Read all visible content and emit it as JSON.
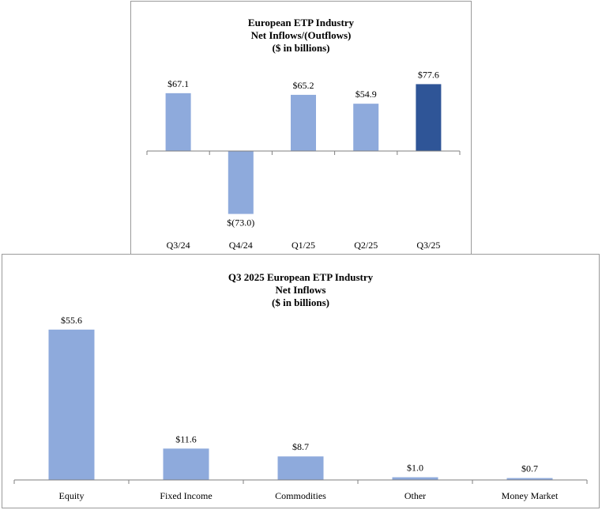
{
  "colors": {
    "bar": "#8eaadc",
    "highlight": "#2f5597",
    "axis": "#7f7f7f"
  },
  "chart_data": [
    {
      "type": "bar",
      "title": [
        "European ETP Industry",
        "Net Inflows/(Outflows)",
        "($ in billions)"
      ],
      "xlabel": "",
      "ylabel": "",
      "categories": [
        "Q3/24",
        "Q4/24",
        "Q1/25",
        "Q2/25",
        "Q3/25"
      ],
      "values": [
        67.1,
        -73.0,
        65.2,
        54.9,
        77.6
      ],
      "labels": [
        "$67.1",
        "$(73.0)",
        "$65.2",
        "$54.9",
        "$77.6"
      ],
      "highlight_index": 4,
      "ylim": [
        -80,
        100
      ],
      "grid": false,
      "legend": "none"
    },
    {
      "type": "bar",
      "title": [
        "Q3 2025 European ETP Industry",
        "Net Inflows",
        "($ in billions)"
      ],
      "xlabel": "",
      "ylabel": "",
      "categories": [
        "Equity",
        "Fixed Income",
        "Commodities",
        "Other",
        "Money Market"
      ],
      "values": [
        55.6,
        11.6,
        8.7,
        1.0,
        0.7
      ],
      "labels": [
        "$55.6",
        "$11.6",
        "$8.7",
        "$1.0",
        "$0.7"
      ],
      "highlight_index": null,
      "ylim": [
        0,
        60
      ],
      "grid": false,
      "legend": "none"
    }
  ]
}
